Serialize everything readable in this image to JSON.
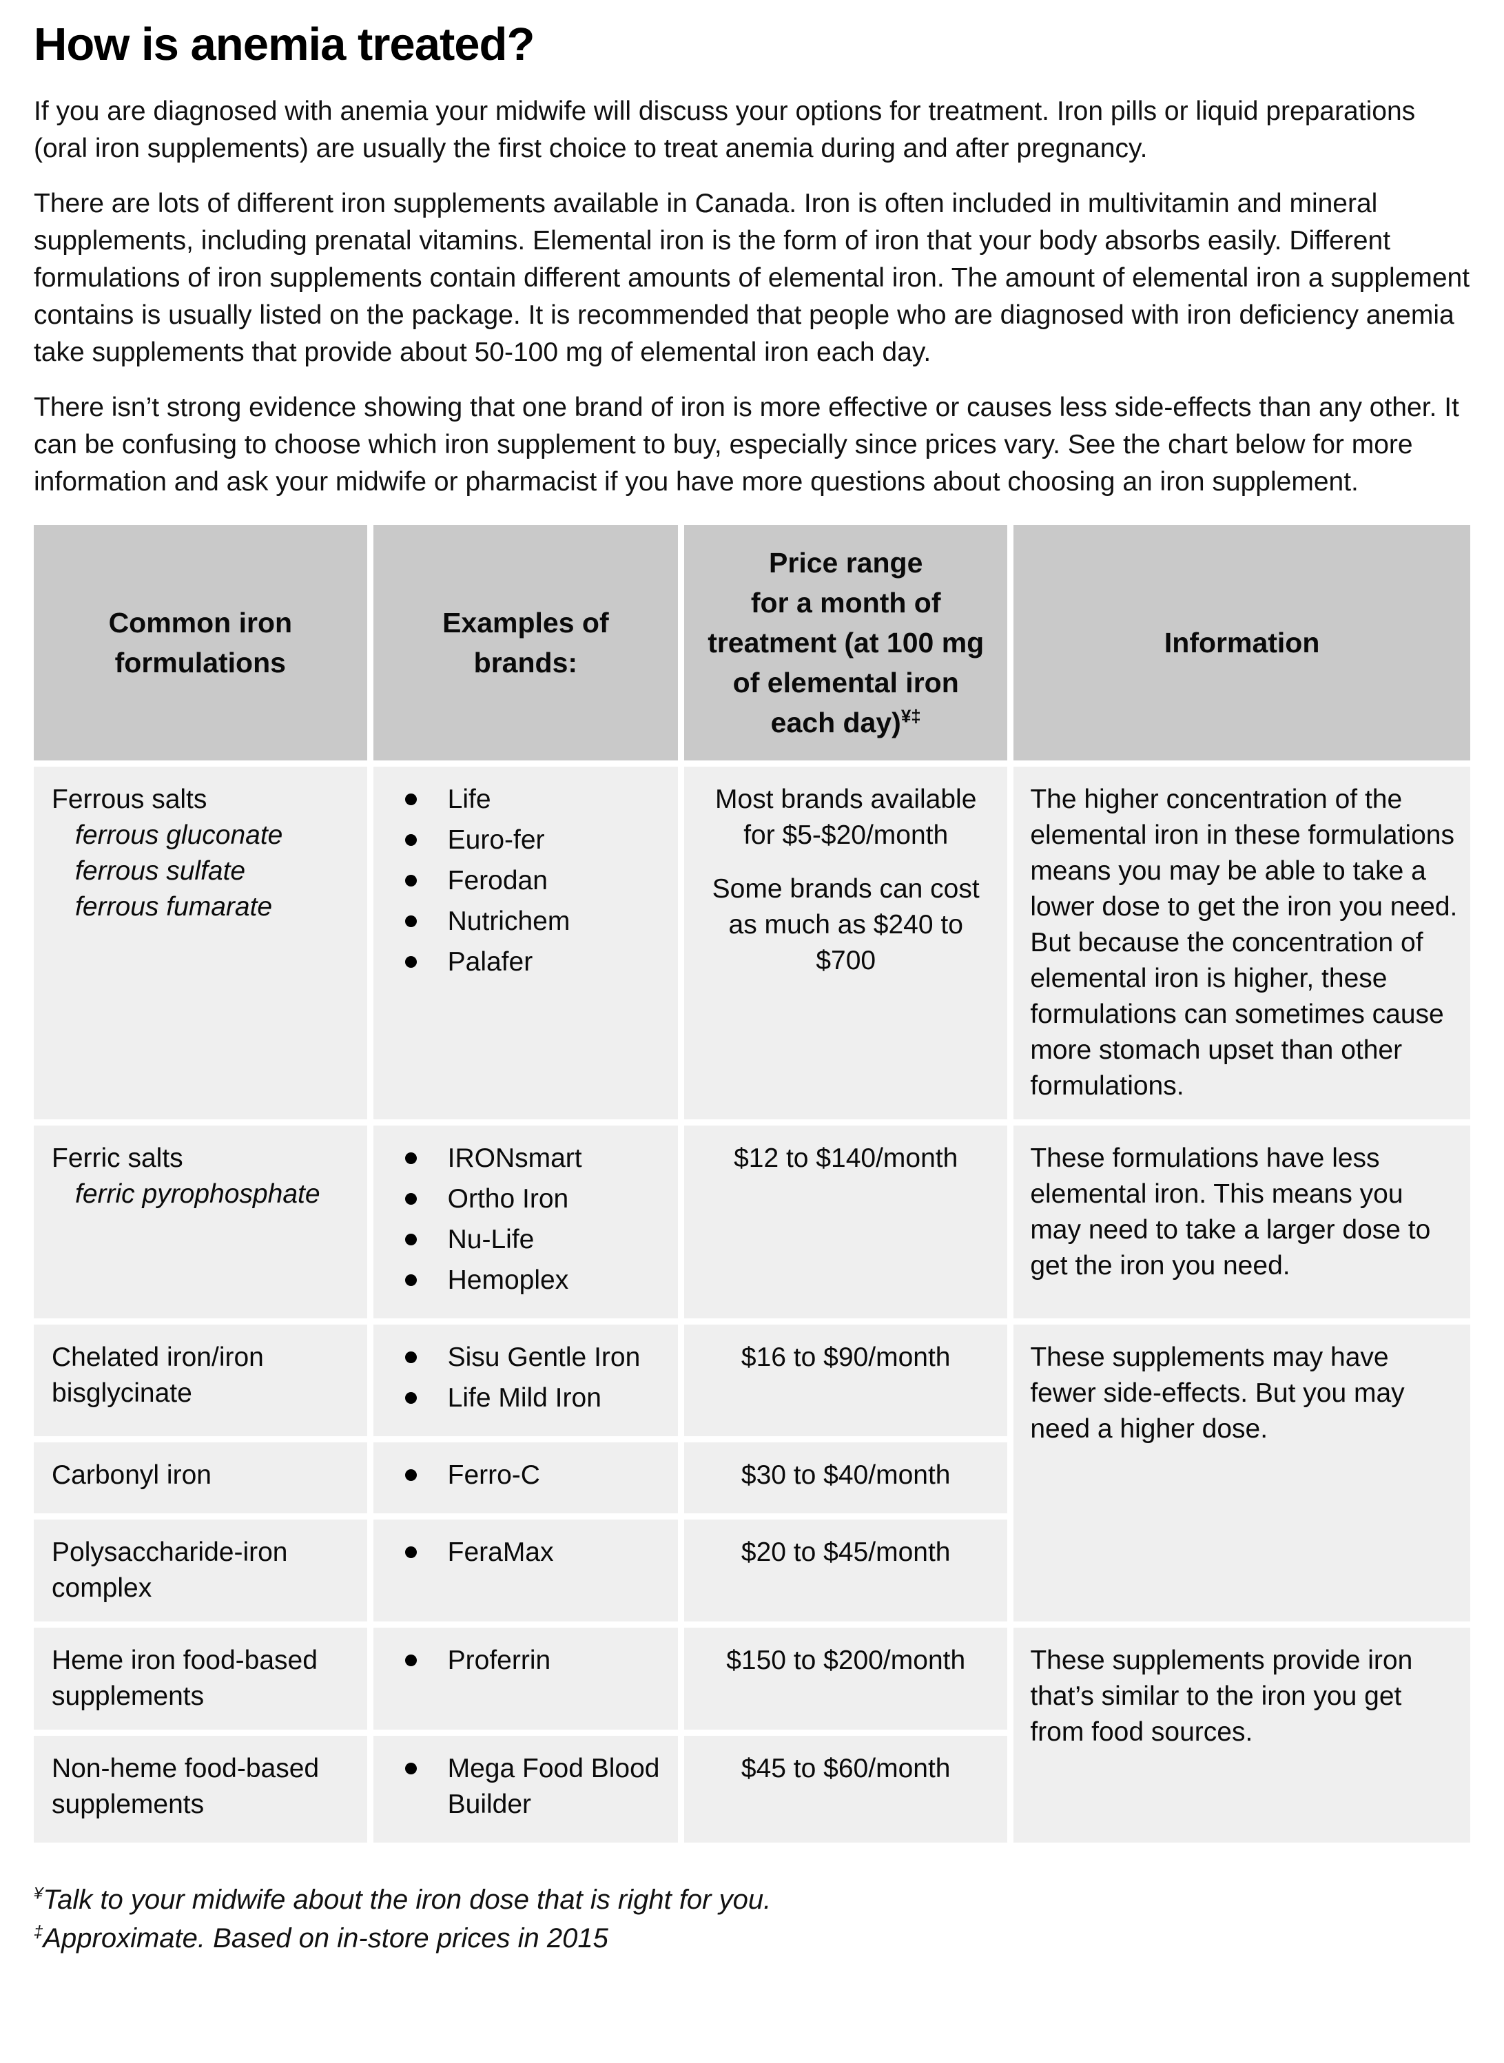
{
  "page": {
    "title": "How is anemia treated?",
    "paragraphs": [
      "If you are diagnosed with anemia your midwife will discuss your options for treatment. Iron pills or liquid preparations (oral iron supplements) are usually the first choice to treat anemia during and after pregnancy.",
      "There are lots of different iron supplements available in Canada. Iron is often included in multivitamin and mineral supplements, including prenatal vitamins. Elemental iron is the form of iron that your body absorbs easily. Different formulations of iron supplements contain different amounts of elemental iron. The amount of elemental iron a supplement contains is usually listed on the package. It is recommended that people who are diagnosed with iron deficiency anemia take supplements that provide about 50-100 mg of elemental iron each day.",
      "There isn’t strong evidence showing that one brand of iron is more effective or causes less side-effects than any other. It can be confusing to choose which iron supplement to buy, especially since prices vary. See the chart below for more information and ask your midwife or pharmacist if you have more questions about choosing an iron supplement."
    ]
  },
  "table": {
    "headers": {
      "formulations": "Common iron formulations",
      "brands": "Examples of brands:",
      "price_line1": "Price range",
      "price_line2": "for a month of treatment (at 100 mg of elemental iron each day)",
      "price_superscript": "¥‡",
      "information": "Information"
    },
    "rows": [
      {
        "formulation": "Ferrous salts",
        "sub_items": [
          "ferrous gluconate",
          "ferrous sulfate",
          "ferrous fumarate"
        ],
        "brands": [
          "Life",
          "Euro-fer",
          "Ferodan",
          "Nutrichem",
          "Palafer"
        ],
        "price_lines": [
          "Most brands available for $5-$20/month",
          "Some brands can cost as much as $240 to $700"
        ],
        "info": "The higher concentration of the elemental iron in these formulations means you may be able to take a lower dose to get the iron you need. But because the concentration of elemental iron is higher, these formulations can sometimes cause more stomach upset than other formulations."
      },
      {
        "formulation": "Ferric salts",
        "sub_items": [
          "ferric pyrophosphate"
        ],
        "brands": [
          "IRONsmart",
          "Ortho Iron",
          "Nu-Life",
          "Hemoplex"
        ],
        "price_lines": [
          "$12 to $140/month"
        ],
        "info": "These formulations have less elemental iron. This means you may need to take a larger dose to get the iron you need."
      },
      {
        "formulation": "Chelated iron/iron bisglycinate",
        "sub_items": [],
        "brands": [
          "Sisu Gentle Iron",
          "Life Mild Iron"
        ],
        "price_lines": [
          "$16 to $90/month"
        ],
        "info": "These supplements may have fewer side-effects. But you may need a higher dose."
      },
      {
        "formulation": "Carbonyl iron",
        "sub_items": [],
        "brands": [
          "Ferro-C"
        ],
        "price_lines": [
          "$30 to $40/month"
        ]
      },
      {
        "formulation": "Polysaccharide-iron complex",
        "sub_items": [],
        "brands": [
          "FeraMax"
        ],
        "price_lines": [
          "$20 to $45/month"
        ]
      },
      {
        "formulation": "Heme iron food-based supplements",
        "sub_items": [],
        "brands": [
          "Proferrin"
        ],
        "price_lines": [
          "$150 to $200/month"
        ],
        "info": "These supplements provide iron that’s similar to the iron you get from food sources."
      },
      {
        "formulation": "Non-heme food-based supplements",
        "sub_items": [],
        "brands": [
          "Mega Food Blood Builder"
        ],
        "price_lines": [
          "$45 to $60/month"
        ]
      }
    ]
  },
  "footnotes": [
    {
      "marker": "¥",
      "text": "Talk to your midwife about the iron dose that is right for you."
    },
    {
      "marker": "‡",
      "text": "Approximate. Based on in-store prices in 2015"
    }
  ],
  "colors": {
    "header_background": "#c9c9c9",
    "row_background": "#efefef",
    "text": "#0a0a0a"
  }
}
